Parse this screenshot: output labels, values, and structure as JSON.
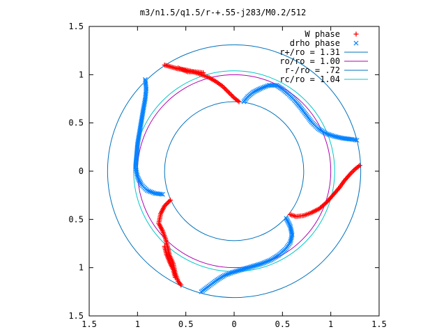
{
  "chart_data": {
    "type": "scatter",
    "title": "m3/n1.5/q1.5/r-+.55-j283/M0.2/512",
    "xlabel": "",
    "ylabel": "",
    "xlim": [
      -1.5,
      1.5
    ],
    "ylim": [
      -1.5,
      1.5
    ],
    "x_tick_values": [
      -1.5,
      -1,
      -0.5,
      0,
      0.5,
      1,
      1.5
    ],
    "x_tick_labels": [
      "1.5",
      "1",
      "0.5",
      "0",
      "0.5",
      "1",
      "1.5"
    ],
    "y_tick_values": [
      1.5,
      1,
      0.5,
      0,
      -0.5,
      -1,
      -1.5
    ],
    "y_tick_labels": [
      "1.5",
      "1",
      "0.5",
      "0",
      "0.5",
      "1",
      "1.5"
    ],
    "grid": false,
    "legend_position": "top-right",
    "legend": [
      {
        "label": "W phase",
        "marker": "+",
        "color": "#ff0000"
      },
      {
        "label": "drho phase",
        "marker": "x",
        "color": "#0080ff"
      },
      {
        "label": "r+/ro = 1.31",
        "line": true,
        "color": "#0072bd"
      },
      {
        "label": "ro/ro = 1.00",
        "line": true,
        "color": "#b000b0"
      },
      {
        "label": "r-/ro = .72",
        "line": true,
        "color": "#0072bd"
      },
      {
        "label": "rc/ro = 1.04",
        "line": true,
        "color": "#00c8c8"
      }
    ],
    "circles": [
      {
        "radius": 1.31,
        "color": "#0072bd"
      },
      {
        "radius": 1.0,
        "color": "#b000b0"
      },
      {
        "radius": 0.72,
        "color": "#0072bd"
      },
      {
        "radius": 1.04,
        "color": "#00c8c8"
      }
    ],
    "series": [
      {
        "name": "W phase",
        "marker": "+",
        "color": "#ff0000",
        "branches": [
          [
            [
              -0.72,
              1.1
            ],
            [
              -0.65,
              1.08
            ],
            [
              -0.58,
              1.06
            ],
            [
              -0.5,
              1.05
            ],
            [
              -0.42,
              1.03
            ],
            [
              -0.34,
              1.0
            ],
            [
              -0.26,
              0.97
            ],
            [
              -0.19,
              0.93
            ],
            [
              -0.12,
              0.88
            ],
            [
              -0.06,
              0.82
            ],
            [
              0.0,
              0.76
            ],
            [
              0.05,
              0.72
            ]
          ],
          [
            [
              -0.58,
              1.07
            ],
            [
              -0.48,
              1.03
            ],
            [
              -0.4,
              1.03
            ],
            [
              -0.32,
              1.02
            ]
          ],
          [
            [
              1.3,
              0.06
            ],
            [
              1.25,
              0.02
            ],
            [
              1.2,
              -0.03
            ],
            [
              1.14,
              -0.1
            ],
            [
              1.09,
              -0.17
            ],
            [
              1.03,
              -0.24
            ],
            [
              0.96,
              -0.32
            ],
            [
              0.88,
              -0.39
            ],
            [
              0.8,
              -0.43
            ],
            [
              0.72,
              -0.46
            ],
            [
              0.64,
              -0.47
            ],
            [
              0.58,
              -0.45
            ]
          ],
          [
            [
              -0.66,
              -0.3
            ],
            [
              -0.72,
              -0.36
            ],
            [
              -0.76,
              -0.44
            ],
            [
              -0.78,
              -0.54
            ],
            [
              -0.74,
              -0.62
            ],
            [
              -0.71,
              -0.7
            ],
            [
              -0.69,
              -0.78
            ],
            [
              -0.67,
              -0.87
            ],
            [
              -0.63,
              -0.96
            ],
            [
              -0.61,
              -1.06
            ],
            [
              -0.58,
              -1.14
            ],
            [
              -0.55,
              -1.18
            ]
          ],
          [
            [
              -0.72,
              -0.78
            ],
            [
              -0.7,
              -0.86
            ],
            [
              -0.66,
              -0.96
            ],
            [
              -0.63,
              -1.02
            ],
            [
              -0.61,
              -1.1
            ]
          ]
        ]
      },
      {
        "name": "drho phase",
        "marker": "x",
        "color": "#0080ff",
        "branches": [
          [
            [
              0.1,
              0.72
            ],
            [
              0.14,
              0.77
            ],
            [
              0.2,
              0.82
            ],
            [
              0.28,
              0.86
            ],
            [
              0.36,
              0.89
            ],
            [
              0.44,
              0.89
            ],
            [
              0.5,
              0.85
            ],
            [
              0.56,
              0.8
            ],
            [
              0.62,
              0.74
            ],
            [
              0.68,
              0.67
            ],
            [
              0.74,
              0.59
            ],
            [
              0.8,
              0.51
            ],
            [
              0.87,
              0.44
            ],
            [
              0.95,
              0.39
            ],
            [
              1.04,
              0.36
            ],
            [
              1.13,
              0.34
            ],
            [
              1.22,
              0.33
            ],
            [
              1.27,
              0.32
            ]
          ],
          [
            [
              -0.92,
              0.95
            ],
            [
              -0.91,
              0.85
            ],
            [
              -0.92,
              0.75
            ],
            [
              -0.94,
              0.64
            ],
            [
              -0.96,
              0.52
            ],
            [
              -0.98,
              0.4
            ],
            [
              -1.0,
              0.28
            ],
            [
              -1.01,
              0.16
            ],
            [
              -1.02,
              0.04
            ],
            [
              -1.0,
              -0.06
            ],
            [
              -0.96,
              -0.14
            ],
            [
              -0.9,
              -0.2
            ],
            [
              -0.82,
              -0.23
            ],
            [
              -0.74,
              -0.24
            ]
          ],
          [
            [
              0.54,
              -0.49
            ],
            [
              0.58,
              -0.57
            ],
            [
              0.6,
              -0.66
            ],
            [
              0.58,
              -0.74
            ],
            [
              0.53,
              -0.81
            ],
            [
              0.46,
              -0.87
            ],
            [
              0.38,
              -0.92
            ],
            [
              0.28,
              -0.96
            ],
            [
              0.18,
              -0.99
            ],
            [
              0.08,
              -1.02
            ],
            [
              -0.02,
              -1.05
            ],
            [
              -0.1,
              -1.08
            ],
            [
              -0.18,
              -1.13
            ],
            [
              -0.26,
              -1.19
            ],
            [
              -0.34,
              -1.25
            ]
          ]
        ]
      }
    ]
  }
}
